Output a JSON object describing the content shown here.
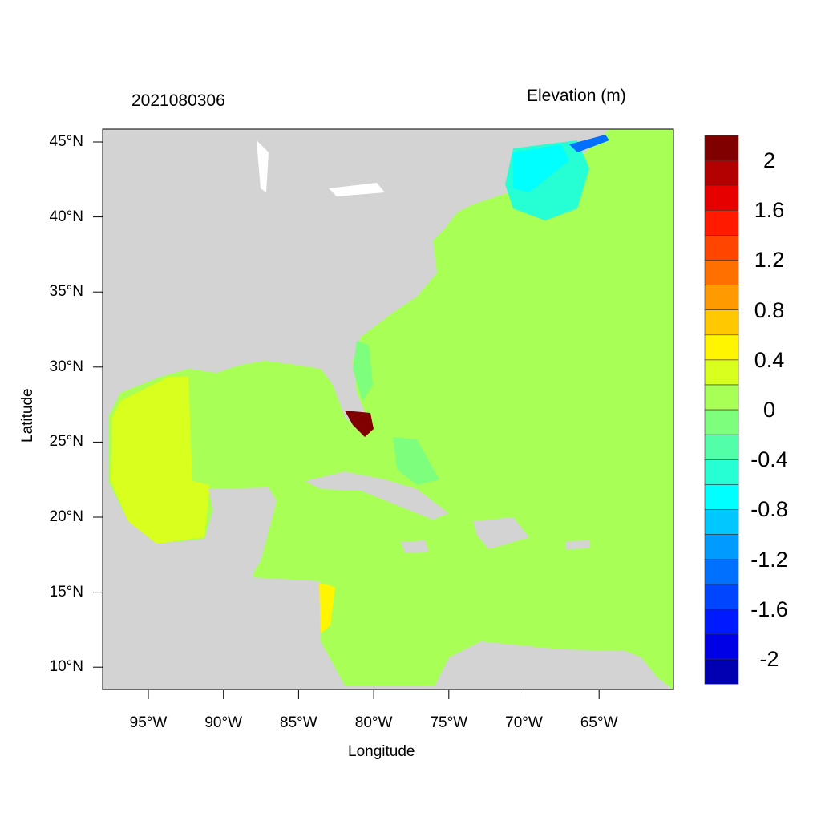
{
  "title_left": "2021080306",
  "title_right": "Elevation (m)",
  "xlabel": "Longitude",
  "ylabel": "Latitude",
  "x_ticks": [
    "95°W",
    "90°W",
    "85°W",
    "80°W",
    "75°W",
    "70°W",
    "65°W"
  ],
  "y_ticks": [
    "45°N",
    "40°N",
    "35°N",
    "30°N",
    "25°N",
    "20°N",
    "15°N",
    "10°N"
  ],
  "colorbar": {
    "labels": [
      "2",
      "1.6",
      "1.2",
      "0.8",
      "0.4",
      "0",
      "-0.4",
      "-0.8",
      "-1.2",
      "-1.6",
      "-2"
    ],
    "colors": [
      "#800000",
      "#b30000",
      "#e60000",
      "#ff1a00",
      "#ff4500",
      "#ff7000",
      "#ff9b00",
      "#ffc800",
      "#fff500",
      "#d9ff1f",
      "#a8ff56",
      "#7dff7d",
      "#52ffa8",
      "#26ffd4",
      "#00ffff",
      "#00c8ff",
      "#009bff",
      "#0070ff",
      "#0045ff",
      "#001aff",
      "#0000e6",
      "#0000b3"
    ]
  },
  "colors": {
    "land": "#d3d3d3",
    "ocean_zero": "#a8ff56",
    "gulf_positive": "#d9ff1f",
    "surge_high": "#800000",
    "negative": "#00ffff"
  },
  "chart_data": {
    "type": "heatmap",
    "title": "2021080306",
    "subtitle": "Elevation (m)",
    "xlabel": "Longitude",
    "ylabel": "Latitude",
    "xlim": [
      -98,
      -60
    ],
    "ylim": [
      8.5,
      45.9
    ],
    "levels": [
      -2.2,
      -2.0,
      -1.8,
      -1.6,
      -1.4,
      -1.2,
      -1.0,
      -0.8,
      -0.6,
      -0.4,
      -0.2,
      0,
      0.2,
      0.4,
      0.6,
      0.8,
      1.0,
      1.2,
      1.4,
      1.6,
      1.8,
      2.0,
      2.2
    ]
  }
}
